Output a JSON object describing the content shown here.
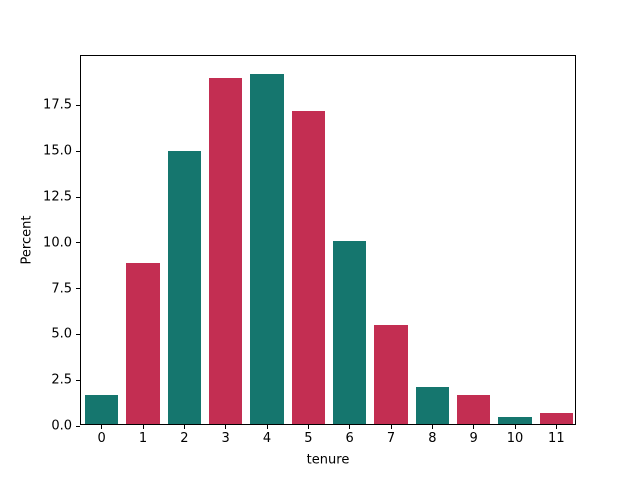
{
  "figure": {
    "background": "#ffffff",
    "axis_color": "#000000",
    "text_color": "#000000"
  },
  "chart_data": {
    "type": "bar",
    "title": "",
    "xlabel": "tenure",
    "ylabel": "Percent",
    "categories": [
      "0",
      "1",
      "2",
      "3",
      "4",
      "5",
      "6",
      "7",
      "8",
      "9",
      "10",
      "11"
    ],
    "values": [
      1.6,
      8.8,
      14.9,
      18.9,
      19.1,
      17.1,
      10.0,
      5.4,
      2.0,
      1.6,
      0.4,
      0.6
    ],
    "bar_colors": [
      "#15766e",
      "#c32e52",
      "#15766e",
      "#c32e52",
      "#15766e",
      "#c32e52",
      "#15766e",
      "#c32e52",
      "#15766e",
      "#c32e52",
      "#15766e",
      "#c32e52"
    ],
    "palette": {
      "teal": "#15766e",
      "crimson": "#c32e52"
    },
    "ytick_labels": [
      "0.0",
      "2.5",
      "5.0",
      "7.5",
      "10.0",
      "12.5",
      "15.0",
      "17.5"
    ],
    "yticks": [
      0.0,
      2.5,
      5.0,
      7.5,
      10.0,
      12.5,
      15.0,
      17.5
    ],
    "ylim": [
      0,
      20.2
    ],
    "grid": false,
    "legend": null,
    "bar_width_fraction": 0.8
  }
}
